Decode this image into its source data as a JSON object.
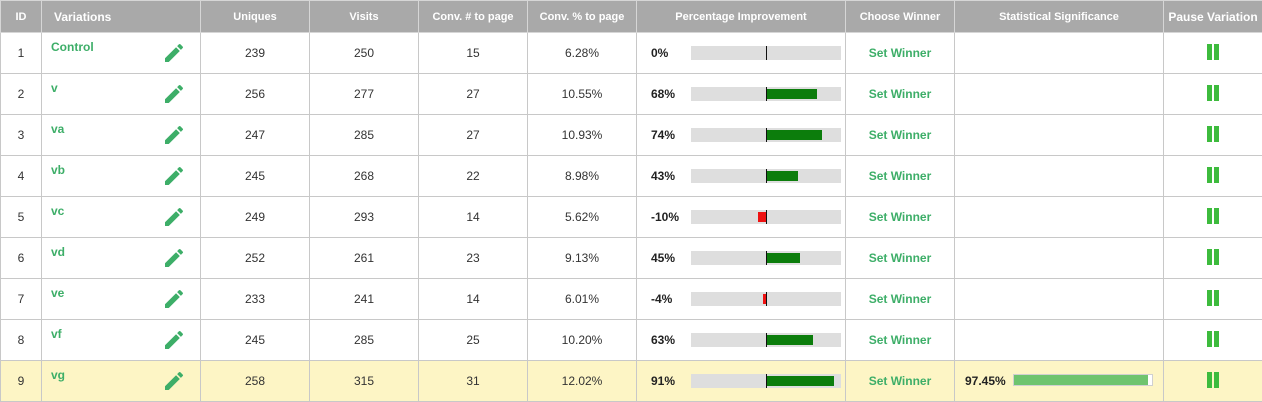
{
  "headers": {
    "id": "ID",
    "variations": "Variations",
    "uniques": "Uniques",
    "visits": "Visits",
    "conv_num": "Conv. # to page",
    "conv_pct": "Conv. % to page",
    "improvement": "Percentage Improvement",
    "choose_winner": "Choose Winner",
    "significance": "Statistical Significance",
    "pause": "Pause Variation"
  },
  "colors": {
    "variation_name": "#3dae68",
    "positive_bar": "#0c7d0c",
    "negative_bar": "#ee1111",
    "significance_bar": "#6ec46e",
    "pause_icon": "#3dbb3d",
    "winner_row_bg": "#fdf5c5",
    "header_bg": "#a9a9a9"
  },
  "icons": {
    "edit": "pencil-icon",
    "pause": "pause-icon"
  },
  "rows": [
    {
      "id": "1",
      "name": "Control",
      "uniques": "239",
      "visits": "250",
      "conv_num": "15",
      "conv_pct": "6.28%",
      "improvement_label": "0%",
      "improvement": 0,
      "winner_label": "Set Winner",
      "significance_label": "",
      "significance": null,
      "winner": false
    },
    {
      "id": "2",
      "name": "v",
      "uniques": "256",
      "visits": "277",
      "conv_num": "27",
      "conv_pct": "10.55%",
      "improvement_label": "68%",
      "improvement": 68,
      "winner_label": "Set Winner",
      "significance_label": "",
      "significance": null,
      "winner": false
    },
    {
      "id": "3",
      "name": "va",
      "uniques": "247",
      "visits": "285",
      "conv_num": "27",
      "conv_pct": "10.93%",
      "improvement_label": "74%",
      "improvement": 74,
      "winner_label": "Set Winner",
      "significance_label": "",
      "significance": null,
      "winner": false
    },
    {
      "id": "4",
      "name": "vb",
      "uniques": "245",
      "visits": "268",
      "conv_num": "22",
      "conv_pct": "8.98%",
      "improvement_label": "43%",
      "improvement": 43,
      "winner_label": "Set Winner",
      "significance_label": "",
      "significance": null,
      "winner": false
    },
    {
      "id": "5",
      "name": "vc",
      "uniques": "249",
      "visits": "293",
      "conv_num": "14",
      "conv_pct": "5.62%",
      "improvement_label": "-10%",
      "improvement": -10,
      "winner_label": "Set Winner",
      "significance_label": "",
      "significance": null,
      "winner": false
    },
    {
      "id": "6",
      "name": "vd",
      "uniques": "252",
      "visits": "261",
      "conv_num": "23",
      "conv_pct": "9.13%",
      "improvement_label": "45%",
      "improvement": 45,
      "winner_label": "Set Winner",
      "significance_label": "",
      "significance": null,
      "winner": false
    },
    {
      "id": "7",
      "name": "ve",
      "uniques": "233",
      "visits": "241",
      "conv_num": "14",
      "conv_pct": "6.01%",
      "improvement_label": "-4%",
      "improvement": -4,
      "winner_label": "Set Winner",
      "significance_label": "",
      "significance": null,
      "winner": false
    },
    {
      "id": "8",
      "name": "vf",
      "uniques": "245",
      "visits": "285",
      "conv_num": "25",
      "conv_pct": "10.20%",
      "improvement_label": "63%",
      "improvement": 63,
      "winner_label": "Set Winner",
      "significance_label": "",
      "significance": null,
      "winner": false
    },
    {
      "id": "9",
      "name": "vg",
      "uniques": "258",
      "visits": "315",
      "conv_num": "31",
      "conv_pct": "12.02%",
      "improvement_label": "91%",
      "improvement": 91,
      "winner_label": "Set Winner",
      "significance_label": "97.45%",
      "significance": 97.45,
      "winner": true
    }
  ]
}
